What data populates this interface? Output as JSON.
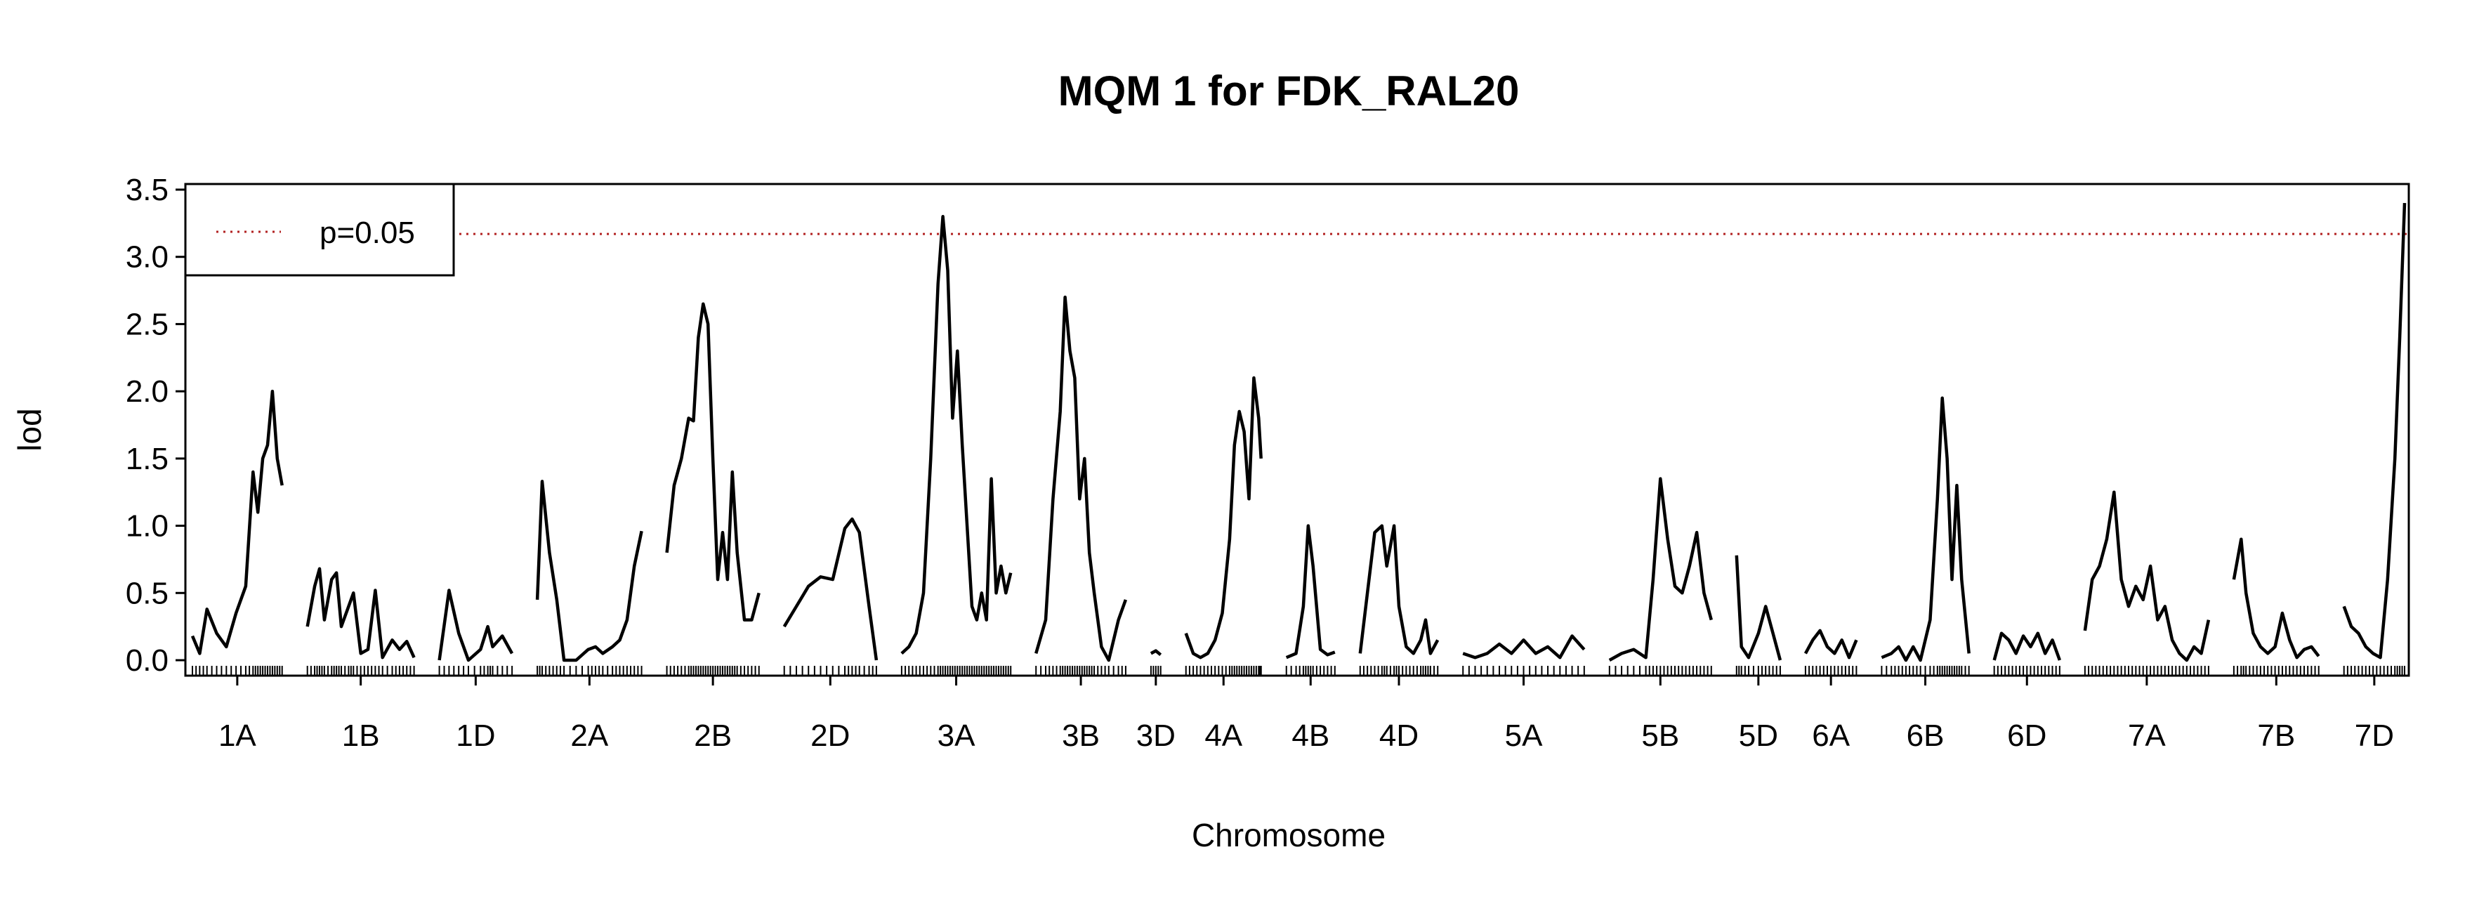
{
  "chart_data": {
    "type": "line",
    "title": "MQM 1 for FDK_RAL20",
    "xlabel": "Chromosome",
    "ylabel": "lod",
    "ylim": [
      0,
      3.5
    ],
    "yticks": [
      "0.0",
      "0.5",
      "1.0",
      "1.5",
      "2.0",
      "2.5",
      "3.0",
      "3.5"
    ],
    "legend": {
      "position": "top-left",
      "entries": [
        {
          "label": "p=0.05",
          "style": "dotted",
          "color": "#b22222"
        }
      ]
    },
    "threshold": {
      "label": "p=0.05",
      "value": 3.17,
      "color": "#b22222"
    },
    "line_color": "#000000",
    "chromosomes": [
      {
        "name": "1A",
        "points": [
          [
            0,
            0.18
          ],
          [
            6,
            0.05
          ],
          [
            12,
            0.38
          ],
          [
            20,
            0.2
          ],
          [
            28,
            0.1
          ],
          [
            36,
            0.35
          ],
          [
            44,
            0.55
          ],
          [
            50,
            1.4
          ],
          [
            54,
            1.1
          ],
          [
            58,
            1.5
          ],
          [
            62,
            1.6
          ],
          [
            66,
            2.0
          ],
          [
            70,
            1.5
          ],
          [
            74,
            1.3
          ]
        ]
      },
      {
        "name": "1B",
        "points": [
          [
            0,
            0.25
          ],
          [
            6,
            0.55
          ],
          [
            10,
            0.68
          ],
          [
            14,
            0.3
          ],
          [
            20,
            0.6
          ],
          [
            24,
            0.65
          ],
          [
            28,
            0.25
          ],
          [
            34,
            0.4
          ],
          [
            38,
            0.5
          ],
          [
            44,
            0.05
          ],
          [
            50,
            0.08
          ],
          [
            56,
            0.52
          ],
          [
            62,
            0.02
          ],
          [
            70,
            0.15
          ],
          [
            76,
            0.08
          ],
          [
            82,
            0.14
          ],
          [
            88,
            0.02
          ]
        ]
      },
      {
        "name": "1D",
        "points": [
          [
            0,
            0.0
          ],
          [
            8,
            0.52
          ],
          [
            16,
            0.2
          ],
          [
            24,
            0.0
          ],
          [
            34,
            0.08
          ],
          [
            40,
            0.25
          ],
          [
            44,
            0.1
          ],
          [
            52,
            0.18
          ],
          [
            60,
            0.05
          ]
        ]
      },
      {
        "name": "2A",
        "points": [
          [
            0,
            0.45
          ],
          [
            4,
            1.33
          ],
          [
            10,
            0.8
          ],
          [
            16,
            0.45
          ],
          [
            22,
            0.0
          ],
          [
            32,
            0.0
          ],
          [
            42,
            0.08
          ],
          [
            48,
            0.1
          ],
          [
            54,
            0.05
          ],
          [
            62,
            0.1
          ],
          [
            68,
            0.15
          ],
          [
            74,
            0.3
          ],
          [
            80,
            0.7
          ],
          [
            86,
            0.96
          ]
        ]
      },
      {
        "name": "2B",
        "points": [
          [
            0,
            0.8
          ],
          [
            6,
            1.3
          ],
          [
            12,
            1.5
          ],
          [
            18,
            1.8
          ],
          [
            22,
            1.78
          ],
          [
            26,
            2.4
          ],
          [
            30,
            2.65
          ],
          [
            34,
            2.5
          ],
          [
            38,
            1.5
          ],
          [
            42,
            0.6
          ],
          [
            46,
            0.95
          ],
          [
            50,
            0.6
          ],
          [
            54,
            1.4
          ],
          [
            58,
            0.8
          ],
          [
            64,
            0.3
          ],
          [
            70,
            0.3
          ],
          [
            76,
            0.5
          ]
        ]
      },
      {
        "name": "2D",
        "points": [
          [
            0,
            0.25
          ],
          [
            10,
            0.4
          ],
          [
            20,
            0.55
          ],
          [
            30,
            0.62
          ],
          [
            40,
            0.6
          ],
          [
            50,
            0.98
          ],
          [
            56,
            1.05
          ],
          [
            62,
            0.95
          ],
          [
            70,
            0.4
          ],
          [
            76,
            0.0
          ]
        ]
      },
      {
        "name": "3A",
        "points": [
          [
            0,
            0.05
          ],
          [
            6,
            0.1
          ],
          [
            12,
            0.2
          ],
          [
            18,
            0.5
          ],
          [
            24,
            1.5
          ],
          [
            30,
            2.8
          ],
          [
            34,
            3.3
          ],
          [
            38,
            2.9
          ],
          [
            42,
            1.8
          ],
          [
            46,
            2.3
          ],
          [
            50,
            1.6
          ],
          [
            54,
            1.0
          ],
          [
            58,
            0.4
          ],
          [
            62,
            0.3
          ],
          [
            66,
            0.5
          ],
          [
            70,
            0.3
          ],
          [
            74,
            1.35
          ],
          [
            78,
            0.5
          ],
          [
            82,
            0.7
          ],
          [
            86,
            0.5
          ],
          [
            90,
            0.65
          ]
        ]
      },
      {
        "name": "3B",
        "points": [
          [
            0,
            0.05
          ],
          [
            8,
            0.3
          ],
          [
            14,
            1.2
          ],
          [
            20,
            1.85
          ],
          [
            24,
            2.7
          ],
          [
            28,
            2.3
          ],
          [
            32,
            2.1
          ],
          [
            36,
            1.2
          ],
          [
            40,
            1.5
          ],
          [
            44,
            0.8
          ],
          [
            48,
            0.5
          ],
          [
            54,
            0.1
          ],
          [
            60,
            0.0
          ],
          [
            68,
            0.3
          ],
          [
            74,
            0.45
          ]
        ]
      },
      {
        "name": "3D",
        "points": [
          [
            0,
            0.05
          ],
          [
            4,
            0.07
          ],
          [
            8,
            0.04
          ]
        ]
      },
      {
        "name": "4A",
        "points": [
          [
            0,
            0.2
          ],
          [
            6,
            0.05
          ],
          [
            12,
            0.02
          ],
          [
            18,
            0.05
          ],
          [
            24,
            0.15
          ],
          [
            30,
            0.35
          ],
          [
            36,
            0.9
          ],
          [
            40,
            1.6
          ],
          [
            44,
            1.85
          ],
          [
            48,
            1.7
          ],
          [
            52,
            1.2
          ],
          [
            56,
            2.1
          ],
          [
            60,
            1.8
          ],
          [
            62,
            1.5
          ]
        ]
      },
      {
        "name": "4B",
        "points": [
          [
            0,
            0.02
          ],
          [
            8,
            0.05
          ],
          [
            14,
            0.4
          ],
          [
            18,
            1.0
          ],
          [
            22,
            0.7
          ],
          [
            28,
            0.08
          ],
          [
            34,
            0.04
          ],
          [
            40,
            0.06
          ]
        ]
      },
      {
        "name": "4D",
        "points": [
          [
            0,
            0.05
          ],
          [
            6,
            0.5
          ],
          [
            12,
            0.95
          ],
          [
            18,
            1.0
          ],
          [
            22,
            0.7
          ],
          [
            28,
            1.0
          ],
          [
            32,
            0.4
          ],
          [
            38,
            0.1
          ],
          [
            44,
            0.05
          ],
          [
            50,
            0.15
          ],
          [
            54,
            0.3
          ],
          [
            58,
            0.05
          ],
          [
            64,
            0.15
          ]
        ]
      },
      {
        "name": "5A",
        "points": [
          [
            0,
            0.05
          ],
          [
            10,
            0.02
          ],
          [
            20,
            0.05
          ],
          [
            30,
            0.12
          ],
          [
            40,
            0.05
          ],
          [
            50,
            0.15
          ],
          [
            60,
            0.05
          ],
          [
            70,
            0.1
          ],
          [
            80,
            0.02
          ],
          [
            90,
            0.18
          ],
          [
            100,
            0.08
          ]
        ]
      },
      {
        "name": "5B",
        "points": [
          [
            0,
            0.0
          ],
          [
            10,
            0.05
          ],
          [
            20,
            0.08
          ],
          [
            30,
            0.02
          ],
          [
            36,
            0.6
          ],
          [
            42,
            1.35
          ],
          [
            48,
            0.9
          ],
          [
            54,
            0.55
          ],
          [
            60,
            0.5
          ],
          [
            66,
            0.7
          ],
          [
            72,
            0.95
          ],
          [
            78,
            0.5
          ],
          [
            84,
            0.3
          ]
        ]
      },
      {
        "name": "5D",
        "points": [
          [
            0,
            0.78
          ],
          [
            4,
            0.1
          ],
          [
            10,
            0.02
          ],
          [
            18,
            0.2
          ],
          [
            24,
            0.4
          ],
          [
            30,
            0.2
          ],
          [
            36,
            0.0
          ]
        ]
      },
      {
        "name": "6A",
        "points": [
          [
            0,
            0.05
          ],
          [
            6,
            0.15
          ],
          [
            12,
            0.22
          ],
          [
            18,
            0.1
          ],
          [
            24,
            0.05
          ],
          [
            30,
            0.15
          ],
          [
            36,
            0.02
          ],
          [
            42,
            0.15
          ]
        ]
      },
      {
        "name": "6B",
        "points": [
          [
            0,
            0.02
          ],
          [
            8,
            0.05
          ],
          [
            14,
            0.1
          ],
          [
            20,
            0.0
          ],
          [
            26,
            0.1
          ],
          [
            32,
            0.0
          ],
          [
            40,
            0.3
          ],
          [
            46,
            1.2
          ],
          [
            50,
            1.95
          ],
          [
            54,
            1.5
          ],
          [
            58,
            0.6
          ],
          [
            62,
            1.3
          ],
          [
            66,
            0.6
          ],
          [
            72,
            0.05
          ]
        ]
      },
      {
        "name": "6D",
        "points": [
          [
            0,
            0.0
          ],
          [
            6,
            0.2
          ],
          [
            12,
            0.15
          ],
          [
            18,
            0.05
          ],
          [
            24,
            0.18
          ],
          [
            30,
            0.1
          ],
          [
            36,
            0.2
          ],
          [
            42,
            0.05
          ],
          [
            48,
            0.15
          ],
          [
            54,
            0.0
          ]
        ]
      },
      {
        "name": "7A",
        "points": [
          [
            0,
            0.22
          ],
          [
            6,
            0.6
          ],
          [
            12,
            0.7
          ],
          [
            18,
            0.9
          ],
          [
            24,
            1.25
          ],
          [
            30,
            0.6
          ],
          [
            36,
            0.4
          ],
          [
            42,
            0.55
          ],
          [
            48,
            0.45
          ],
          [
            54,
            0.7
          ],
          [
            60,
            0.3
          ],
          [
            66,
            0.4
          ],
          [
            72,
            0.15
          ],
          [
            78,
            0.05
          ],
          [
            84,
            0.0
          ],
          [
            90,
            0.1
          ],
          [
            96,
            0.05
          ],
          [
            102,
            0.3
          ]
        ]
      },
      {
        "name": "7B",
        "points": [
          [
            0,
            0.6
          ],
          [
            6,
            0.9
          ],
          [
            10,
            0.5
          ],
          [
            16,
            0.2
          ],
          [
            22,
            0.1
          ],
          [
            28,
            0.05
          ],
          [
            34,
            0.1
          ],
          [
            40,
            0.35
          ],
          [
            46,
            0.15
          ],
          [
            52,
            0.02
          ],
          [
            58,
            0.08
          ],
          [
            64,
            0.1
          ],
          [
            70,
            0.03
          ]
        ]
      },
      {
        "name": "7D",
        "points": [
          [
            0,
            0.4
          ],
          [
            6,
            0.25
          ],
          [
            12,
            0.2
          ],
          [
            18,
            0.1
          ],
          [
            24,
            0.05
          ],
          [
            30,
            0.02
          ],
          [
            36,
            0.6
          ],
          [
            42,
            1.5
          ],
          [
            46,
            2.4
          ],
          [
            50,
            3.4
          ]
        ]
      }
    ]
  }
}
